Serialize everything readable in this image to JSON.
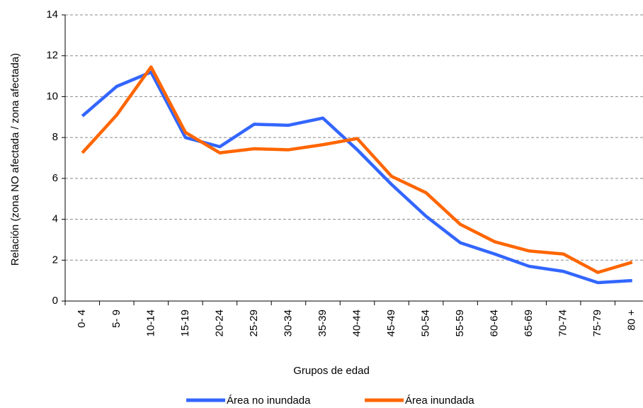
{
  "chart_data": {
    "type": "line",
    "categories": [
      "0- 4",
      "5- 9",
      "10-14",
      "15-19",
      "20-24",
      "25-29",
      "30-34",
      "35-39",
      "40-44",
      "45-49",
      "50-54",
      "55-59",
      "60-64",
      "65-69",
      "70-74",
      "75-79",
      "80 +"
    ],
    "series": [
      {
        "name": "Área no inundada",
        "color": "#3366ff",
        "values": [
          9.05,
          10.5,
          11.2,
          8.0,
          7.55,
          8.65,
          8.6,
          8.95,
          7.4,
          5.7,
          4.15,
          2.85,
          2.3,
          1.7,
          1.45,
          0.9,
          1.0
        ]
      },
      {
        "name": "Área inundada",
        "color": "#ff6600",
        "values": [
          7.25,
          9.1,
          11.45,
          8.25,
          7.25,
          7.45,
          7.4,
          7.65,
          7.95,
          6.1,
          5.3,
          3.75,
          2.9,
          2.45,
          2.3,
          1.4,
          1.9
        ]
      }
    ],
    "ylabel": "Relación (zona NO afectada / zona afectada)",
    "xlabel": "Grupos de edad",
    "ylim": [
      0,
      14
    ],
    "yticks": [
      0,
      2,
      4,
      6,
      8,
      10,
      12,
      14
    ],
    "grid": true,
    "legend": "bottom"
  }
}
